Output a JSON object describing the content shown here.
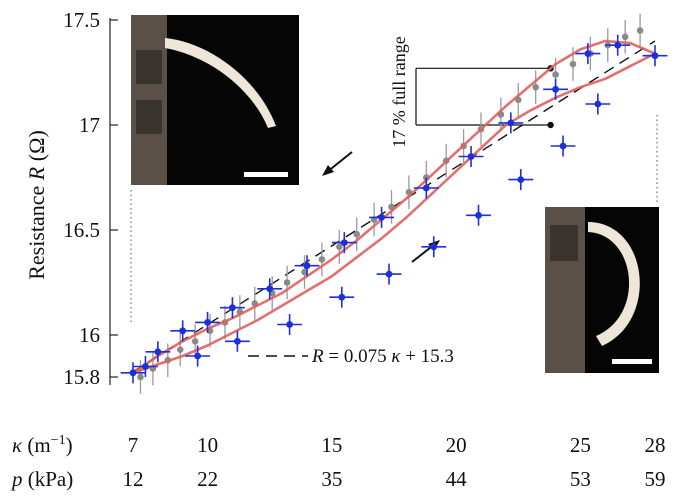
{
  "chart_data": {
    "type": "scatter",
    "title": "",
    "ylabel": {
      "prefix": "Resistance ",
      "var": "R",
      "unit": " (Ω)"
    },
    "ylim": [
      15.8,
      17.5
    ],
    "y_ticks": [
      {
        "value": 15.8,
        "label": "15.8"
      },
      {
        "value": 16,
        "label": "16"
      },
      {
        "value": 16.5,
        "label": "16.5"
      },
      {
        "value": 17,
        "label": "17"
      },
      {
        "value": 17.5,
        "label": "17.5"
      }
    ],
    "xlim": [
      7,
      28
    ],
    "x_axis_rows": [
      {
        "label_var": "κ",
        "label_unit": " (m",
        "label_sup": "−1",
        "label_close": ")",
        "ticks": [
          {
            "value": 7,
            "label": "7"
          },
          {
            "value": 10,
            "label": "10"
          },
          {
            "value": 15,
            "label": "15"
          },
          {
            "value": 20,
            "label": "20"
          },
          {
            "value": 25,
            "label": "25"
          },
          {
            "value": 28,
            "label": "28"
          }
        ]
      },
      {
        "label_var": "p",
        "label_unit": " (kPa)",
        "label_sup": "",
        "label_close": "",
        "ticks": [
          {
            "value": 7,
            "label": "12"
          },
          {
            "value": 10,
            "label": "22"
          },
          {
            "value": 15,
            "label": "35"
          },
          {
            "value": 20,
            "label": "44"
          },
          {
            "value": 25,
            "label": "53"
          },
          {
            "value": 28,
            "label": "59"
          }
        ]
      }
    ],
    "fit_line": {
      "slope": 0.075,
      "intercept": 15.3,
      "equation": {
        "var": "R",
        "rest": " = 0.075 ",
        "kappa": "κ",
        "tail": " + 15.3"
      }
    },
    "series": [
      {
        "role": "loading-fit",
        "color": "#e06060",
        "x": [
          7,
          8,
          9,
          10,
          11,
          12,
          13,
          14,
          15,
          16,
          17,
          18,
          19,
          20,
          21,
          22,
          23,
          24,
          25,
          26,
          27,
          28
        ],
        "y": [
          15.82,
          15.9,
          15.97,
          16.03,
          16.08,
          16.14,
          16.2,
          16.28,
          16.36,
          16.45,
          16.55,
          16.65,
          16.76,
          16.87,
          16.98,
          17.09,
          17.19,
          17.29,
          17.36,
          17.4,
          17.39,
          17.34
        ]
      },
      {
        "role": "unloading-fit",
        "color": "#e06060",
        "x": [
          7,
          8,
          9,
          10,
          11,
          12,
          13,
          14,
          15,
          16,
          17,
          18,
          19,
          20,
          21,
          22,
          23,
          24,
          25,
          26,
          27,
          28
        ],
        "y": [
          15.82,
          15.86,
          15.9,
          15.95,
          16.01,
          16.07,
          16.14,
          16.21,
          16.28,
          16.37,
          16.46,
          16.56,
          16.67,
          16.78,
          16.89,
          17.0,
          17.07,
          17.13,
          17.18,
          17.22,
          17.28,
          17.34
        ]
      },
      {
        "role": "loading-blue",
        "color": "#1f2fd6",
        "x": [
          7,
          8,
          9,
          10,
          11,
          12.5,
          14,
          15.5,
          17,
          18.8,
          20.6,
          22.2,
          24,
          25.3,
          26.5,
          28
        ],
        "y": [
          15.82,
          15.92,
          16.02,
          16.06,
          16.13,
          16.22,
          16.33,
          16.44,
          16.56,
          16.7,
          16.85,
          17.01,
          17.17,
          17.34,
          17.38,
          17.33
        ],
        "err_x": 0.5,
        "err_y": 0.05
      },
      {
        "role": "unloading-blue",
        "color": "#1f2fd6",
        "x": [
          7.5,
          9.6,
          11.2,
          13.3,
          15.4,
          17.3,
          19.1,
          20.9,
          22.6,
          24.3,
          25.7
        ],
        "y": [
          15.85,
          15.9,
          15.97,
          16.05,
          16.18,
          16.29,
          16.42,
          16.57,
          16.74,
          16.9,
          17.1
        ],
        "err_x": 0.5,
        "err_y": 0.05
      },
      {
        "role": "gray-samples",
        "color": "#8a8a8a",
        "x": [
          7.3,
          7.8,
          8.4,
          8.9,
          9.5,
          10.1,
          10.7,
          11.3,
          11.9,
          12.6,
          13.2,
          13.9,
          14.6,
          15.3,
          16.0,
          16.7,
          17.4,
          18.1,
          18.8,
          19.6,
          20.3,
          21.0,
          21.8,
          22.5,
          23.2,
          24.0,
          24.7,
          25.4,
          26.1,
          26.8,
          27.4
        ],
        "y": [
          15.8,
          15.84,
          15.88,
          15.93,
          15.97,
          16.02,
          16.06,
          16.11,
          16.15,
          16.2,
          16.25,
          16.3,
          16.36,
          16.42,
          16.48,
          16.55,
          16.61,
          16.68,
          16.75,
          16.83,
          16.9,
          16.98,
          17.05,
          17.12,
          17.18,
          17.24,
          17.29,
          17.34,
          17.38,
          17.42,
          17.45
        ],
        "err_y": 0.08
      }
    ],
    "annotations": {
      "range_label": "17 % full range",
      "range_y": [
        17.0,
        17.27
      ],
      "range_x": 23.8
    }
  }
}
